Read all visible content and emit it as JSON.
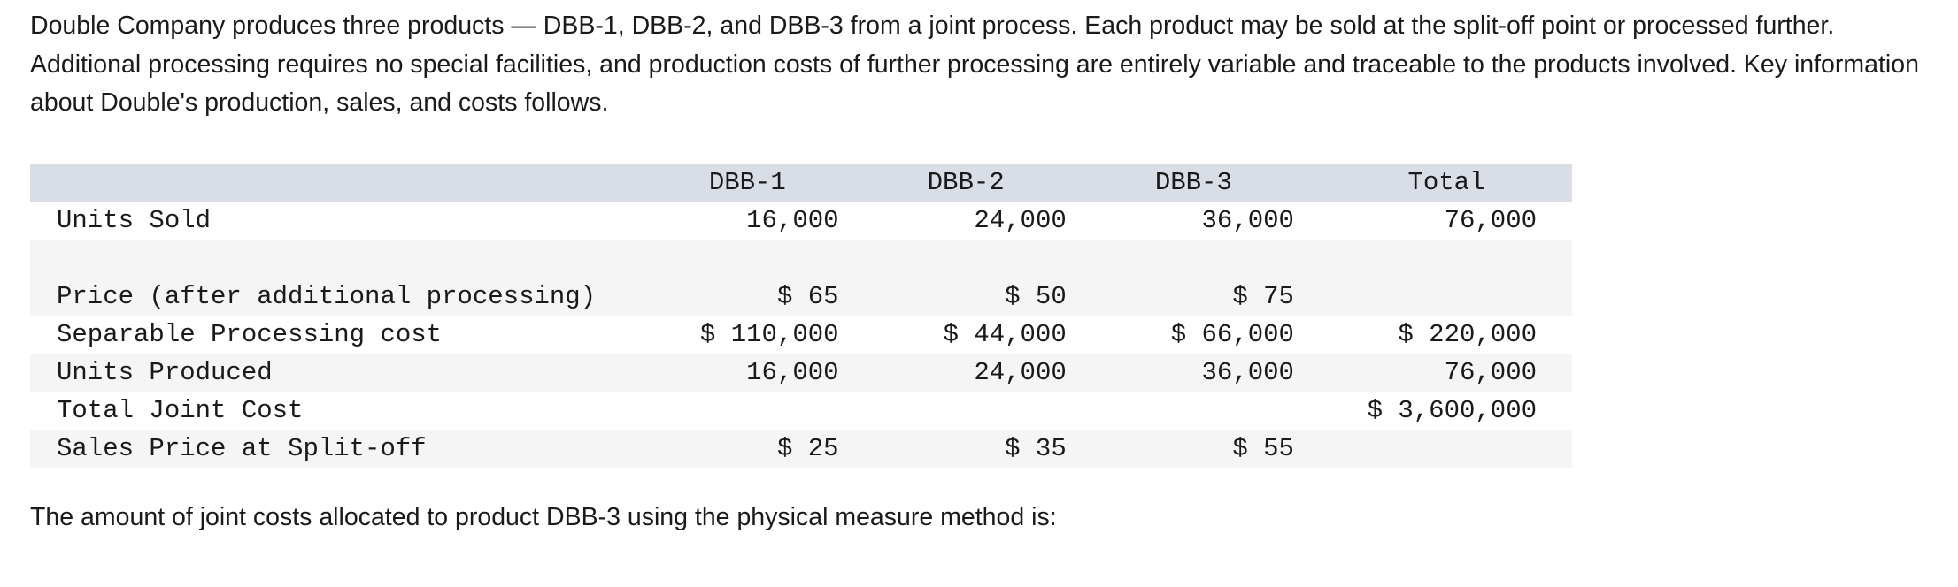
{
  "intro_text": "Double Company produces three products — DBB-1, DBB-2, and DBB-3 from a joint process. Each product may be sold at the split-off point or processed further. Additional processing requires no special facilities, and production costs of further processing are entirely variable and traceable to the products involved. Key information about Double's production, sales, and costs follows.",
  "table": {
    "headers": [
      "",
      "DBB-1",
      "DBB-2",
      "DBB-3",
      "Total"
    ],
    "rows": [
      {
        "label": "Units Sold",
        "dbb1": "16,000",
        "dbb2": "24,000",
        "dbb3": "36,000",
        "total": "76,000"
      },
      {
        "label": "Price (after additional processing)",
        "dbb1": "$ 65",
        "dbb2": "$ 50",
        "dbb3": "$ 75",
        "total": ""
      },
      {
        "label": "Separable Processing cost",
        "dbb1": "$ 110,000",
        "dbb2": "$ 44,000",
        "dbb3": "$ 66,000",
        "total": "$ 220,000"
      },
      {
        "label": "Units Produced",
        "dbb1": "16,000",
        "dbb2": "24,000",
        "dbb3": "36,000",
        "total": "76,000"
      },
      {
        "label": "Total Joint Cost",
        "dbb1": "",
        "dbb2": "",
        "dbb3": "",
        "total": "$ 3,600,000"
      },
      {
        "label": "Sales Price at Split-off",
        "dbb1": "$ 25",
        "dbb2": "$ 35",
        "dbb3": "$ 55",
        "total": ""
      }
    ]
  },
  "question_text": "The amount of joint costs allocated to product DBB-3 using the physical measure method is:"
}
